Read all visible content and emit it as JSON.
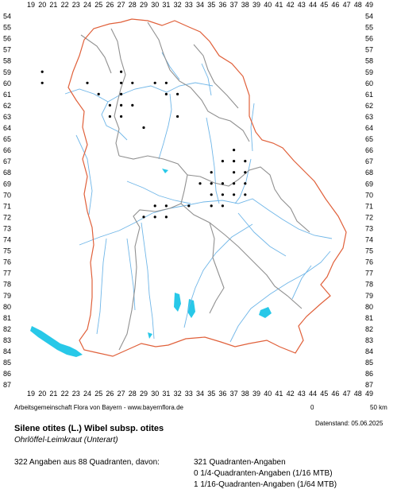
{
  "map": {
    "x_ticks": [
      "19",
      "20",
      "21",
      "22",
      "23",
      "24",
      "25",
      "26",
      "27",
      "28",
      "29",
      "30",
      "31",
      "32",
      "33",
      "34",
      "35",
      "36",
      "37",
      "38",
      "39",
      "40",
      "41",
      "42",
      "43",
      "44",
      "45",
      "46",
      "47",
      "48",
      "49"
    ],
    "y_ticks": [
      "54",
      "55",
      "56",
      "57",
      "58",
      "59",
      "60",
      "61",
      "62",
      "63",
      "64",
      "65",
      "66",
      "67",
      "68",
      "69",
      "70",
      "71",
      "72",
      "73",
      "74",
      "75",
      "76",
      "77",
      "78",
      "79",
      "80",
      "81",
      "82",
      "83",
      "84",
      "85",
      "86",
      "87"
    ],
    "colors": {
      "state_border": "#e0603a",
      "district_border": "#909090",
      "river": "#6fb6e8",
      "lake": "#28c8e8",
      "dot": "#000000"
    },
    "occurrence_cells": [
      [
        20,
        59
      ],
      [
        20,
        60
      ],
      [
        24,
        60
      ],
      [
        27,
        59
      ],
      [
        27,
        60
      ],
      [
        28,
        60
      ],
      [
        27,
        61
      ],
      [
        25,
        61
      ],
      [
        26,
        62
      ],
      [
        27,
        62
      ],
      [
        28,
        62
      ],
      [
        26,
        63
      ],
      [
        27,
        63
      ],
      [
        30,
        60
      ],
      [
        31,
        60
      ],
      [
        31,
        61
      ],
      [
        32,
        61
      ],
      [
        32,
        63
      ],
      [
        29,
        64
      ],
      [
        37,
        66
      ],
      [
        36,
        67
      ],
      [
        37,
        67
      ],
      [
        38,
        67
      ],
      [
        35,
        68
      ],
      [
        37,
        68
      ],
      [
        38,
        68
      ],
      [
        36,
        69
      ],
      [
        37,
        69
      ],
      [
        38,
        69
      ],
      [
        34,
        69
      ],
      [
        35,
        69
      ],
      [
        35,
        70
      ],
      [
        36,
        70
      ],
      [
        37,
        70
      ],
      [
        38,
        70
      ],
      [
        35,
        71
      ],
      [
        36,
        71
      ],
      [
        30,
        71
      ],
      [
        31,
        71
      ],
      [
        29,
        72
      ],
      [
        30,
        72
      ],
      [
        31,
        72
      ],
      [
        33,
        71
      ]
    ]
  },
  "credit": "Arbeitsgemeinschaft Flora von Bayern - www.bayernflora.de",
  "scale": {
    "start": "0",
    "end": "50 km"
  },
  "date": "Datenstand: 05.06.2025",
  "species": {
    "name": "Silene otites (L.) Wibel subsp. otites",
    "common_name": "Ohrlöffel-Leimkraut (Unterart)"
  },
  "stats": {
    "summary": "322 Angaben aus 88 Quadranten, davon:",
    "line1": "321 Quadranten-Angaben",
    "line2": "0 1/4-Quadranten-Angaben (1/16 MTB)",
    "line3": "1 1/16-Quadranten-Angaben (1/64 MTB)"
  }
}
